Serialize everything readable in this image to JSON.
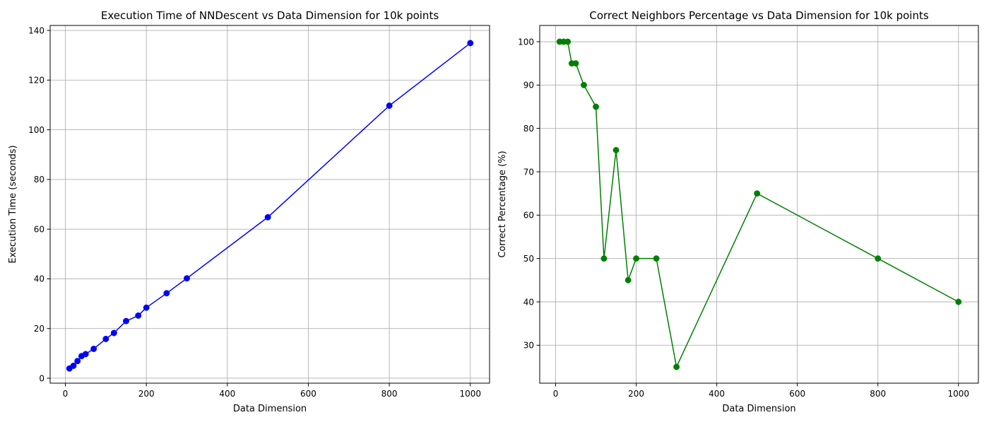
{
  "chart_data": [
    {
      "type": "line",
      "title": "Execution Time of NNDescent vs Data Dimension for 10k points",
      "xlabel": "Data Dimension",
      "ylabel": "Execution Time (seconds)",
      "xlim": [
        -37.5,
        1047.5
      ],
      "ylim": [
        -2,
        142
      ],
      "xticks": [
        0,
        200,
        400,
        600,
        800,
        1000
      ],
      "yticks": [
        0,
        20,
        40,
        60,
        80,
        100,
        120,
        140
      ],
      "grid": true,
      "marker": "circle",
      "series": [
        {
          "color": "#0000ff",
          "x": [
            10,
            20,
            30,
            40,
            50,
            70,
            100,
            120,
            150,
            180,
            200,
            250,
            300,
            500,
            800,
            1000
          ],
          "y": [
            3.9,
            5.0,
            6.9,
            8.9,
            9.7,
            11.8,
            15.8,
            18.2,
            23.0,
            25.2,
            28.4,
            34.2,
            40.2,
            64.8,
            109.7,
            134.9
          ]
        }
      ]
    },
    {
      "type": "line",
      "title": "Correct Neighbors Percentage vs Data Dimension for 10k points",
      "xlabel": "Data Dimension",
      "ylabel": "Correct Percentage (%)",
      "xlim": [
        -39.5,
        1049.5
      ],
      "ylim": [
        21.25,
        103.75
      ],
      "xticks": [
        0,
        200,
        400,
        600,
        800,
        1000
      ],
      "yticks": [
        30,
        40,
        50,
        60,
        70,
        80,
        90,
        100
      ],
      "grid": true,
      "marker": "circle",
      "series": [
        {
          "color": "#008000",
          "x": [
            10,
            20,
            30,
            40,
            50,
            70,
            100,
            120,
            150,
            180,
            200,
            250,
            300,
            500,
            800,
            1000
          ],
          "y": [
            100,
            100,
            100,
            95,
            95,
            90,
            85,
            50,
            75,
            45,
            50,
            50,
            25,
            65,
            50,
            40
          ]
        }
      ]
    }
  ]
}
